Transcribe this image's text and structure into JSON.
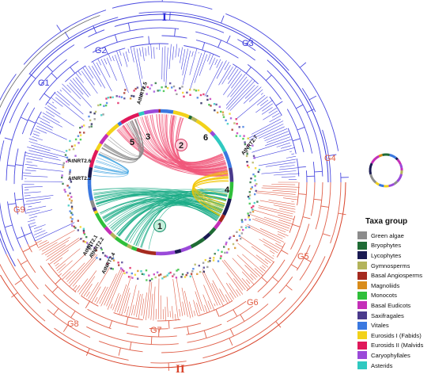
{
  "figure": {
    "groups": [
      {
        "label": "I",
        "color": "#2b2bd9"
      },
      {
        "label": "II",
        "color": "#d9442b"
      }
    ],
    "clades": [
      {
        "label": "G1",
        "color": "#3a3ad9"
      },
      {
        "label": "G2",
        "color": "#3a3ad9"
      },
      {
        "label": "G3",
        "color": "#3a3ad9"
      },
      {
        "label": "G4",
        "color": "#e05a40"
      },
      {
        "label": "G5",
        "color": "#e05a40"
      },
      {
        "label": "G6",
        "color": "#e05a40"
      },
      {
        "label": "G7",
        "color": "#e05a40"
      },
      {
        "label": "G8",
        "color": "#e05a40"
      },
      {
        "label": "G9",
        "color": "#e05a40"
      }
    ],
    "gene_labels": [
      "AtNRT2.5",
      "AtNRT2.7",
      "AtNRT2.6",
      "AtNRT2.3",
      "AtNRT2.1",
      "AtNRT2.2",
      "AtNRT2.4"
    ],
    "modules": [
      {
        "label": "1",
        "color": "#1aab86"
      },
      {
        "label": "2",
        "color": "#f0567a"
      },
      {
        "label": "3",
        "color": "#888888"
      },
      {
        "label": "4",
        "color": "#f2c500"
      },
      {
        "label": "5",
        "color": "#3aa0e0"
      },
      {
        "label": "6",
        "color": "#f0567a"
      }
    ]
  },
  "legend": {
    "title": "Taxa group",
    "items": [
      {
        "label": "Green algae",
        "color": "#8c8c8c"
      },
      {
        "label": "Bryophytes",
        "color": "#1f6b35"
      },
      {
        "label": "Lycophytes",
        "color": "#1a1a52"
      },
      {
        "label": "Gymnosperms",
        "color": "#b3b35a"
      },
      {
        "label": "Basal Angiosperms",
        "color": "#a52a1f"
      },
      {
        "label": "Magnoliids",
        "color": "#d98c1a"
      },
      {
        "label": "Monocots",
        "color": "#2fbf3a"
      },
      {
        "label": "Basal Eudicots",
        "color": "#c42fb8"
      },
      {
        "label": "Saxifragales",
        "color": "#4a3a8c"
      },
      {
        "label": "Vitales",
        "color": "#3a78e0"
      },
      {
        "label": "Eurosids I (Fabids)",
        "color": "#f2d21a"
      },
      {
        "label": "Eurosids II (Malvids",
        "color": "#e0185a"
      },
      {
        "label": "Caryophyllales",
        "color": "#9a4ad9"
      },
      {
        "label": "Asterids",
        "color": "#2fc9c0"
      }
    ]
  }
}
